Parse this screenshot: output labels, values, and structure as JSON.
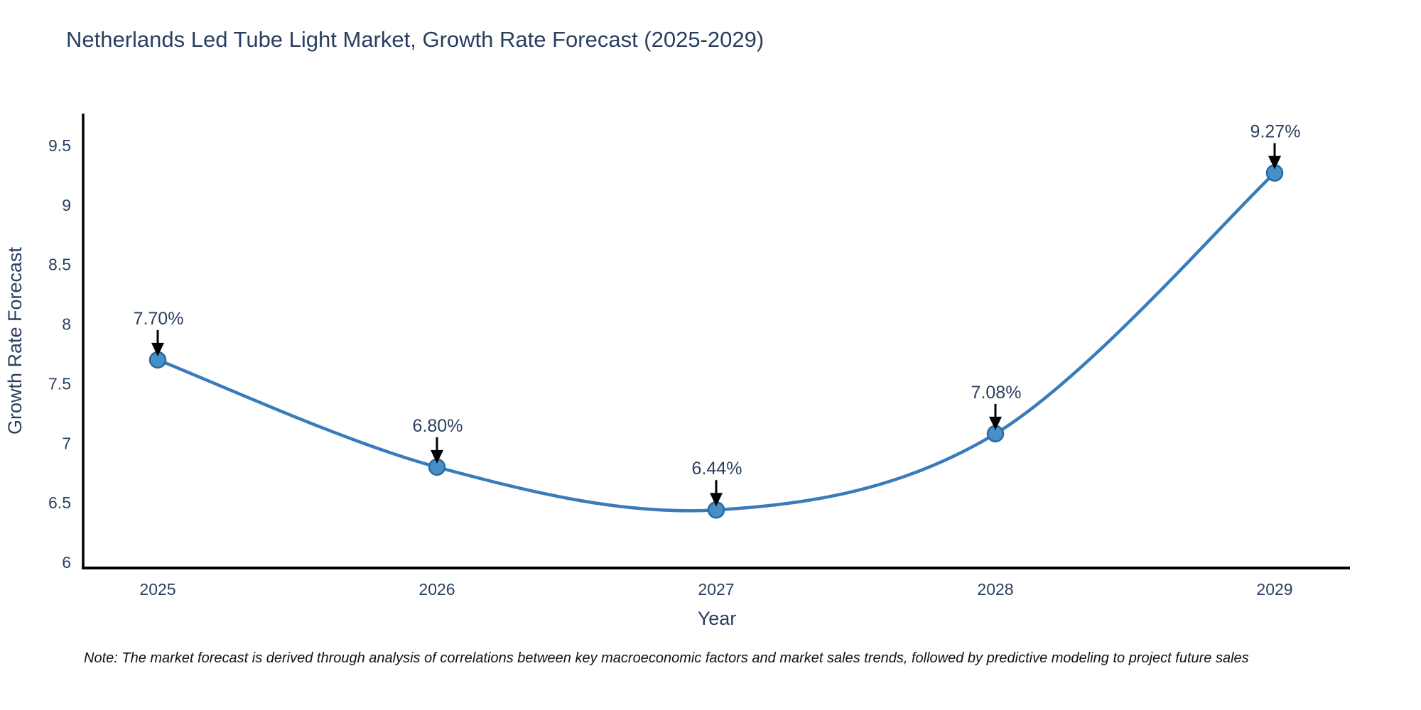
{
  "title": {
    "text": "Netherlands Led Tube Light Market, Growth Rate Forecast (2025-2029)",
    "color": "#2a3f5f"
  },
  "chart_data": {
    "type": "line",
    "line_shape": "spline",
    "x": [
      2025,
      2026,
      2027,
      2028,
      2029
    ],
    "series": [
      {
        "name": "Growth Rate Forecast",
        "values": [
          7.7,
          6.8,
          6.44,
          7.08,
          9.27
        ]
      }
    ],
    "point_labels": [
      "7.70%",
      "6.80%",
      "6.44%",
      "7.08%",
      "9.27%"
    ],
    "title": "Netherlands Led Tube Light Market, Growth Rate Forecast (2025-2029)",
    "xlabel": "Year",
    "ylabel": "Growth Rate Forecast",
    "yticks": [
      6,
      6.5,
      7,
      7.5,
      8,
      8.5,
      9,
      9.5
    ],
    "xticks": [
      "2025",
      "2026",
      "2027",
      "2028",
      "2029"
    ],
    "ylim": [
      5.95,
      9.8
    ],
    "grid": false,
    "legend": "none",
    "colors": {
      "line": "#3a7cba",
      "marker_fill": "#4590c8",
      "marker_edge": "#2a6aa0",
      "axis_line": "#000000",
      "tick_text": "#2a3f5f",
      "axis_title_text": "#2a3f5f",
      "annotation_text": "#2a3f5f",
      "annotation_arrow": "#000000"
    }
  },
  "note": {
    "text": "Note: The market forecast is derived through analysis of correlations between key macroeconomic factors and market sales trends, followed by predictive modeling to project future sales"
  }
}
